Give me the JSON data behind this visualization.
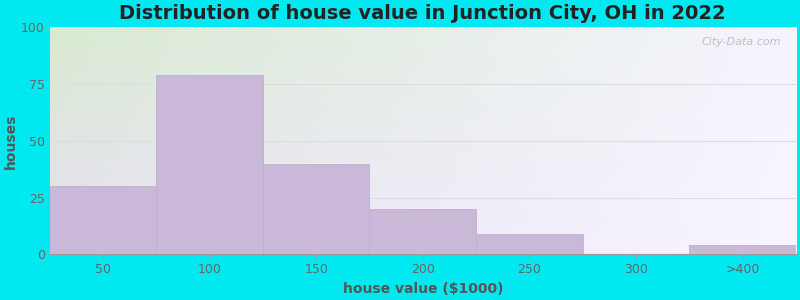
{
  "title": "Distribution of house value in Junction City, OH in 2022",
  "xlabel": "house value ($1000)",
  "ylabel": "houses",
  "bar_labels": [
    "50",
    "100",
    "150",
    "200",
    "250",
    "300",
    ">400"
  ],
  "bar_values": [
    30,
    79,
    40,
    20,
    9,
    0,
    4
  ],
  "bar_color": "#c9b8d8",
  "bar_edgecolor": "#bbaacb",
  "ylim": [
    0,
    100
  ],
  "yticks": [
    0,
    25,
    50,
    75,
    100
  ],
  "background_outer": "#00e8f0",
  "grad_top_left": "#d8ead0",
  "grad_right": "#f0eef8",
  "grid_color": "#dddddd",
  "title_fontsize": 14,
  "label_fontsize": 10,
  "tick_fontsize": 9,
  "watermark_text": "City-Data.com",
  "bar_width": 1.0
}
